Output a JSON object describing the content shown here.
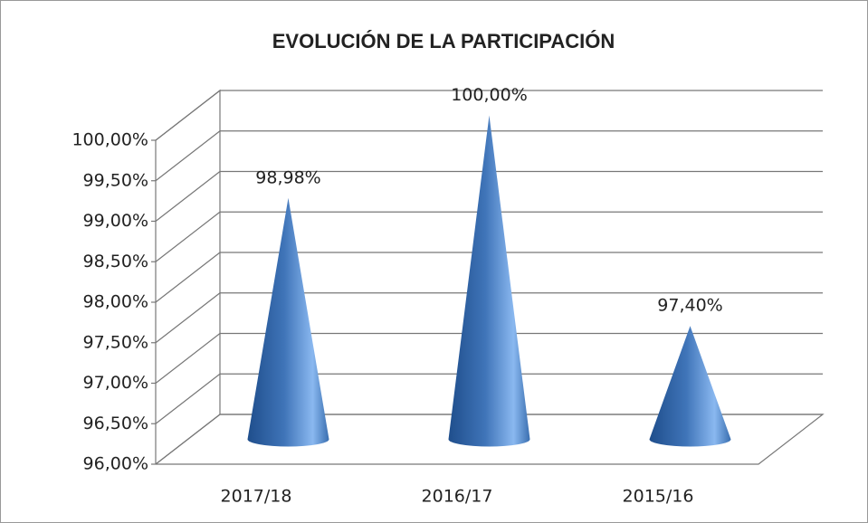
{
  "chart_data": {
    "type": "cone",
    "title": "EVOLUCIÓN DE LA PARTICIPACIÓN",
    "categories": [
      "2017/18",
      "2016/17",
      "2015/16"
    ],
    "values": [
      98.98,
      100,
      97.4
    ],
    "value_labels": [
      "98,98%",
      "100,00%",
      "97,40%"
    ],
    "color": "#4a7ebb",
    "ylim": [
      96,
      100
    ],
    "yticks": [
      {
        "value": 96,
        "label": "96,00%"
      },
      {
        "value": 96.5,
        "label": "96,50%"
      },
      {
        "value": 97,
        "label": "97,00%"
      },
      {
        "value": 97.5,
        "label": "97,50%"
      },
      {
        "value": 98,
        "label": "98,00%"
      },
      {
        "value": 98.5,
        "label": "98,50%"
      },
      {
        "value": 99,
        "label": "99,00%"
      },
      {
        "value": 99.5,
        "label": "99,50%"
      },
      {
        "value": 100,
        "label": "100,00%"
      }
    ],
    "grid": true
  }
}
